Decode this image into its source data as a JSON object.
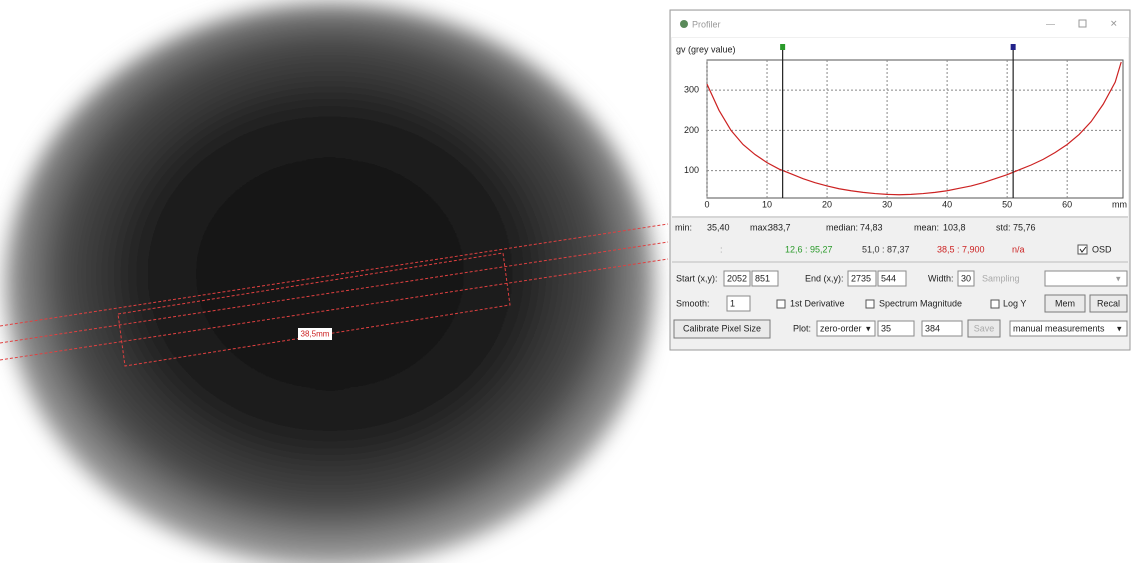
{
  "window": {
    "title": "Profiler"
  },
  "image": {
    "annotation": "38,5mm"
  },
  "chart_data": {
    "type": "line",
    "y_label": "gv (grey value)",
    "x_label": "mm",
    "x": [
      0,
      2,
      4,
      6,
      8,
      10,
      12,
      14,
      16,
      18,
      20,
      22,
      24,
      26,
      28,
      30,
      32,
      34,
      36,
      38,
      40,
      42,
      44,
      46,
      48,
      50,
      52,
      54,
      56,
      58,
      60,
      62,
      64,
      66,
      68,
      69
    ],
    "series": [
      {
        "color": "#cc2222",
        "values": [
          315,
          250,
          200,
          165,
          140,
          120,
          104,
          92,
          80,
          70,
          62,
          55,
          50,
          46,
          43,
          41,
          40,
          41,
          43,
          46,
          50,
          56,
          62,
          70,
          80,
          90,
          102,
          114,
          128,
          145,
          165,
          190,
          222,
          265,
          320,
          370
        ]
      }
    ],
    "xlim": [
      0,
      69.3
    ],
    "ylim": [
      32,
      375
    ],
    "xticks": [
      0,
      10,
      20,
      30,
      40,
      50,
      60
    ],
    "yticks": [
      100,
      200,
      300
    ],
    "grid": true,
    "markers": [
      {
        "x": 12.6,
        "color": "#2a9a2a"
      },
      {
        "x": 51.0,
        "color": "#22228a"
      }
    ]
  },
  "stats": {
    "min": {
      "label": "min:",
      "value": "35,40"
    },
    "max": {
      "label": "max:",
      "value": "383,7"
    },
    "median": {
      "label": "median:",
      "value": "74,83"
    },
    "mean": {
      "label": "mean:",
      "value": "103,8"
    },
    "std": {
      "label": "std:",
      "value": "75,76"
    }
  },
  "measurements": {
    "prefix": ":",
    "items": [
      {
        "text": "12,6 : 95,27",
        "color": "#2a9a2a"
      },
      {
        "text": "51,0 : 87,37",
        "color": "#333333"
      },
      {
        "text": "38,5 : 7,900",
        "color": "#cc2222"
      },
      {
        "text": "n/a",
        "color": "#cc2222"
      }
    ],
    "osd": "OSD"
  },
  "controls": {
    "start_label": "Start (x,y):",
    "start_x": "2052",
    "start_y": "851",
    "end_label": "End (x,y):",
    "end_x": "2735",
    "end_y": "544",
    "width_label": "Width:",
    "width": "30",
    "sampling": "Sampling",
    "smooth_label": "Smooth:",
    "smooth": "1",
    "derivative": "1st Derivative",
    "spectrum": "Spectrum Magnitude",
    "log_y": "Log Y",
    "mem": "Mem",
    "recal": "Recal",
    "calibrate": "Calibrate Pixel Size",
    "plot_label": "Plot:",
    "plot_mode": "zero-order",
    "plot_min": "35",
    "plot_max": "384",
    "save": "Save",
    "mode": "manual measurements"
  }
}
